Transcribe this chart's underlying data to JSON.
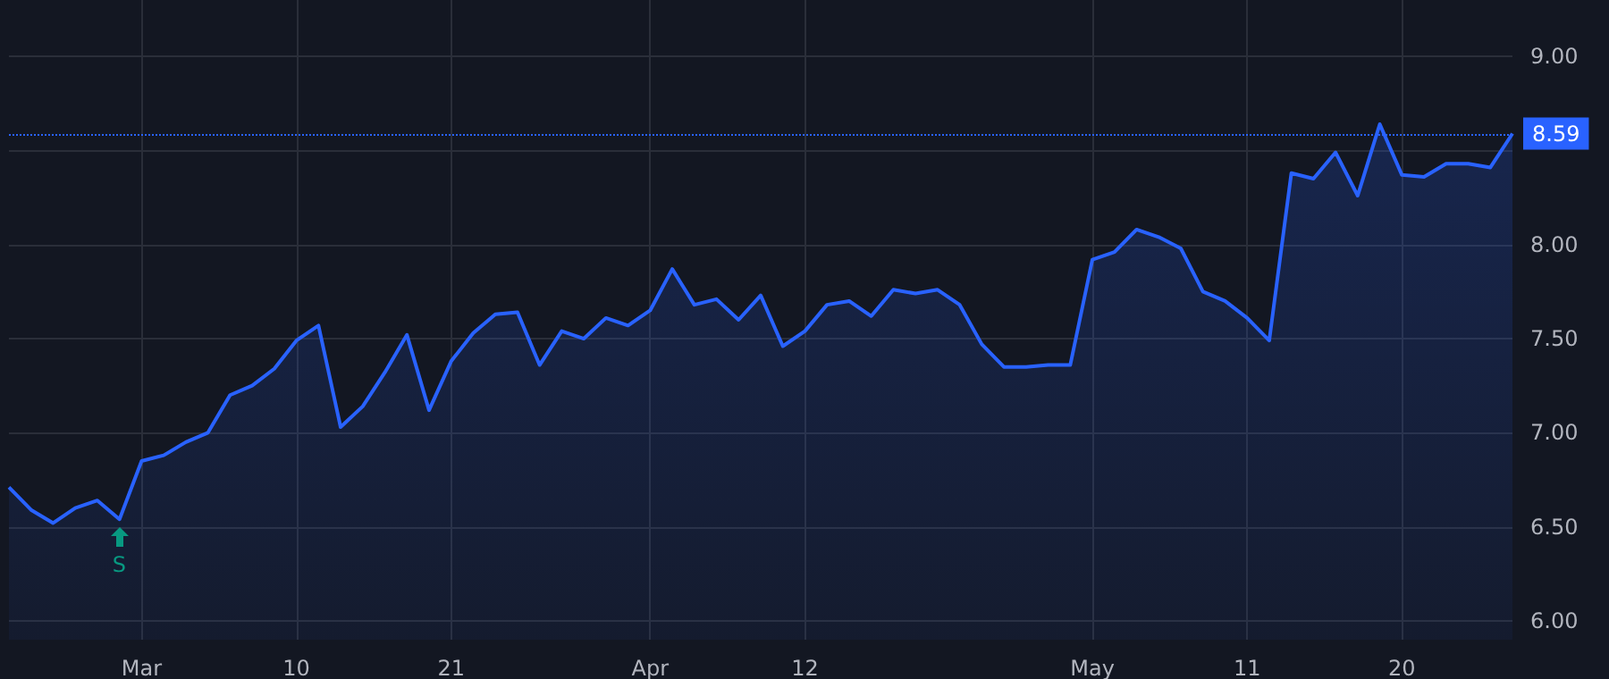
{
  "chart_data": {
    "type": "area",
    "categories": [
      null,
      null,
      null,
      null,
      null,
      null,
      "Mar",
      null,
      null,
      null,
      null,
      null,
      null,
      "10",
      null,
      null,
      null,
      null,
      null,
      null,
      "21",
      null,
      null,
      null,
      null,
      null,
      null,
      null,
      null,
      "Apr",
      null,
      null,
      null,
      null,
      null,
      null,
      "12",
      null,
      null,
      null,
      null,
      null,
      null,
      null,
      null,
      null,
      null,
      null,
      null,
      "May",
      null,
      null,
      null,
      null,
      null,
      null,
      "11",
      null,
      null,
      null,
      null,
      null,
      null,
      "20",
      null,
      null,
      null,
      null,
      null
    ],
    "series": [
      {
        "color": "#2962ff",
        "values": [
          6.71,
          6.59,
          6.52,
          6.6,
          6.64,
          6.54,
          6.85,
          6.88,
          6.95,
          7.0,
          7.2,
          7.25,
          7.34,
          7.49,
          7.57,
          7.03,
          7.14,
          7.32,
          7.52,
          7.12,
          7.38,
          7.53,
          7.63,
          7.64,
          7.36,
          7.54,
          7.5,
          7.61,
          7.57,
          7.65,
          7.87,
          7.68,
          7.71,
          7.6,
          7.73,
          7.46,
          7.54,
          7.68,
          7.7,
          7.62,
          7.76,
          7.74,
          7.76,
          7.68,
          7.47,
          7.35,
          7.35,
          7.36,
          7.36,
          7.92,
          7.96,
          8.08,
          8.04,
          7.98,
          7.75,
          7.7,
          7.61,
          7.49,
          8.38,
          8.35,
          8.49,
          8.26,
          8.64,
          8.37,
          8.36,
          8.43,
          8.43,
          8.41,
          8.59
        ]
      }
    ],
    "ylim": [
      5.9,
      9.3
    ],
    "yticks": [
      {
        "value": 6,
        "label": "6.00"
      },
      {
        "value": 6.5,
        "label": "6.50"
      },
      {
        "value": 7,
        "label": "7.00"
      },
      {
        "value": 7.5,
        "label": "7.50"
      },
      {
        "value": 8,
        "label": "8.00"
      },
      {
        "value": 8.5,
        "label": null
      },
      {
        "value": 9,
        "label": "9.00"
      }
    ],
    "grid": true,
    "marker": "none",
    "line_style": "solid",
    "ref_lines": [
      {
        "axis": "y",
        "value": 8.59,
        "label": "8.59",
        "color": "#2962ff",
        "line_style": "dotted"
      }
    ],
    "annotations": [
      {
        "text": "S",
        "y": 6.54
      }
    ]
  }
}
